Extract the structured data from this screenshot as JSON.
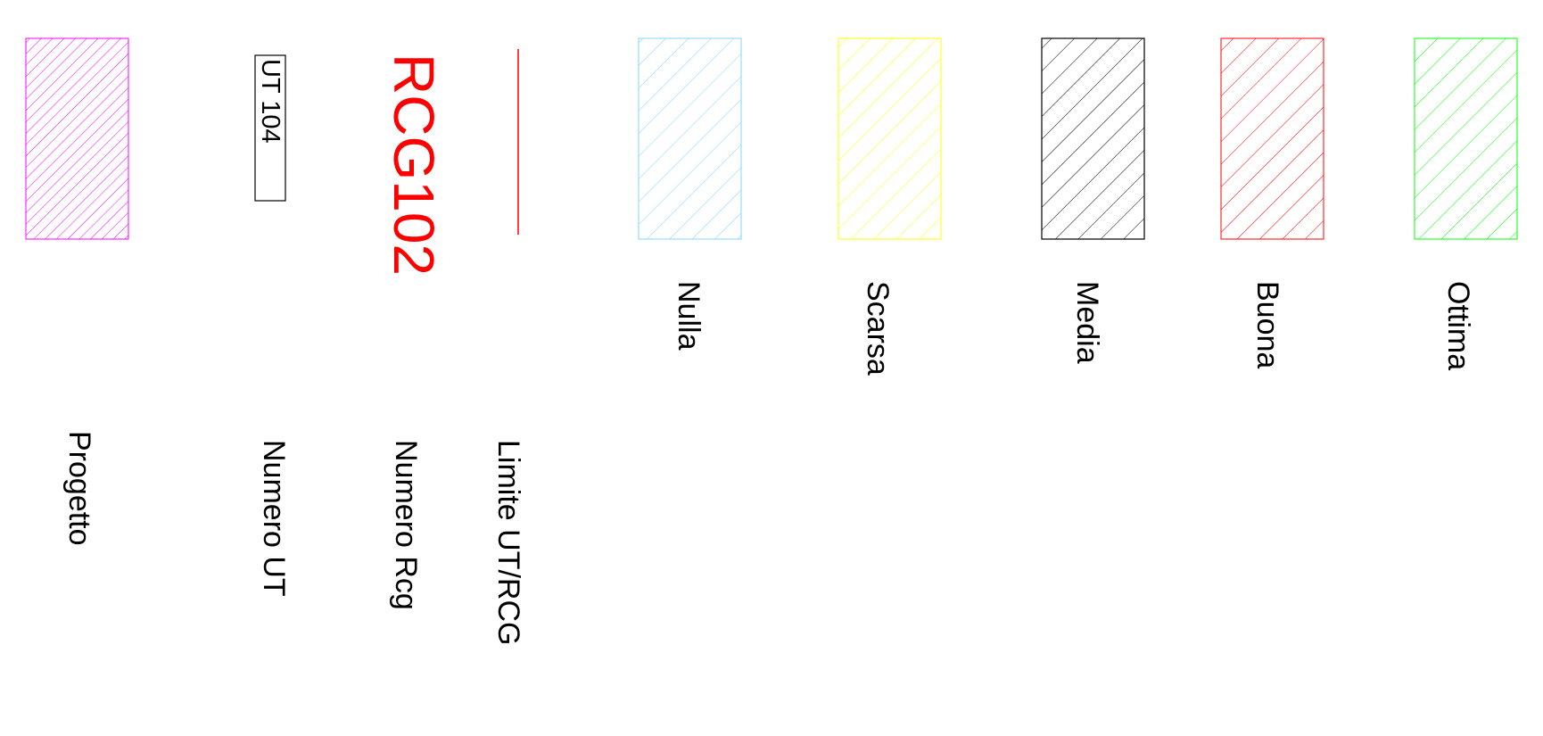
{
  "legend": {
    "progetto": {
      "label": "Progetto",
      "color": "#ff00ff"
    },
    "numero_ut": {
      "label": "Numero UT",
      "sample": "UT 104",
      "color": "#000000"
    },
    "numero_rcg": {
      "label": "Numero Rcg",
      "sample": "RCG102",
      "color": "#ff0000"
    },
    "limite": {
      "label": "Limite UT/RCG",
      "color": "#ff0000"
    },
    "classes": [
      {
        "key": "nulla",
        "label": "Nulla",
        "color": "#7fd4ff"
      },
      {
        "key": "scarsa",
        "label": "Scarsa",
        "color": "#ffff00"
      },
      {
        "key": "media",
        "label": "Media",
        "color": "#000000"
      },
      {
        "key": "buona",
        "label": "Buona",
        "color": "#ff0000"
      },
      {
        "key": "ottima",
        "label": "Ottima",
        "color": "#00ff00"
      }
    ]
  }
}
